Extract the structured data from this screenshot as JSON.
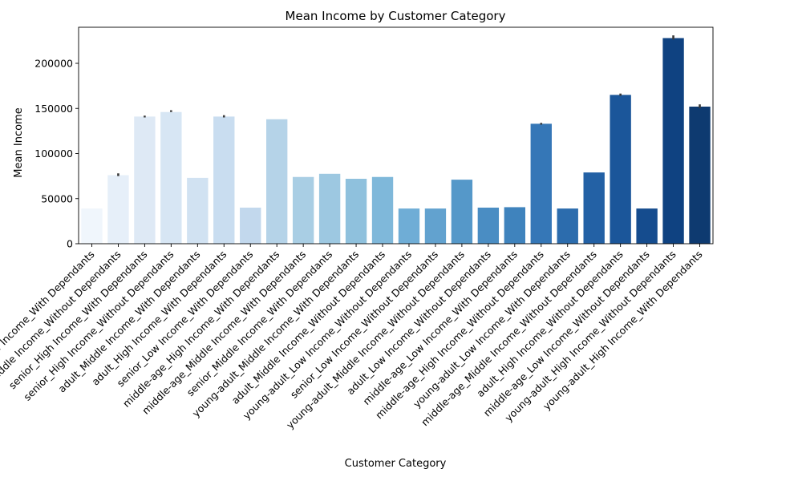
{
  "chart_data": {
    "type": "bar",
    "title": "Mean Income by Customer Category",
    "xlabel": "Customer Category",
    "ylabel": "Mean Income",
    "ylim": [
      0,
      240000
    ],
    "yticks": [
      0,
      50000,
      100000,
      150000,
      200000
    ],
    "ytick_labels": [
      "0",
      "50000",
      "100000",
      "150000",
      "200000"
    ],
    "grid": false,
    "legend": "none",
    "categories": [
      "adult_Low Income_With Dependants",
      "senior_Middle Income_Without Dependants",
      "senior_High Income_With Dependants",
      "senior_High Income_Without Dependants",
      "adult_Middle Income_With Dependants",
      "adult_High Income_With Dependants",
      "senior_Low Income_With Dependants",
      "middle-age_High Income_With Dependants",
      "middle-age_Middle Income_With Dependants",
      "senior_Middle Income_With Dependants",
      "young-adult_Middle Income_With Dependants",
      "adult_Middle Income_Without Dependants",
      "young-adult_Low Income_Without Dependants",
      "senior_Low Income_Without Dependants",
      "young-adult_Middle Income_Without Dependants",
      "adult_Low Income_Without Dependants",
      "middle-age_Low Income_With Dependants",
      "middle-age_High Income_Without Dependants",
      "young-adult_Low Income_With Dependants",
      "middle-age_Middle Income_Without Dependants",
      "adult_High Income_Without Dependants",
      "middle-age_Low Income_Without Dependants",
      "young-adult_High Income_Without Dependants",
      "young-adult_High Income_With Dependants"
    ],
    "values": [
      39000,
      76000,
      141000,
      146000,
      73000,
      141000,
      40000,
      138000,
      74000,
      77500,
      72000,
      74000,
      39000,
      39000,
      71000,
      40000,
      40500,
      133000,
      39000,
      79000,
      165000,
      39000,
      228000,
      152000
    ],
    "error_bars": [
      null,
      [
        75000,
        78000
      ],
      [
        140000,
        142000
      ],
      [
        146000,
        148000
      ],
      null,
      [
        140000,
        142500
      ],
      null,
      null,
      null,
      null,
      null,
      null,
      null,
      null,
      null,
      null,
      null,
      [
        132000,
        134000
      ],
      null,
      null,
      [
        164000,
        166500
      ],
      null,
      [
        226500,
        231000
      ],
      [
        150500,
        154500
      ]
    ],
    "colors": [
      "#f0f6fc",
      "#e6eff9",
      "#dee9f5",
      "#d7e6f4",
      "#d1e2f2",
      "#c9ddf0",
      "#c2d8ed",
      "#b5d3e8",
      "#a9cee4",
      "#9dc8e1",
      "#8fc1dd",
      "#7fb8da",
      "#6fadd6",
      "#62a2cf",
      "#5598c9",
      "#4a8dc3",
      "#3f83bd",
      "#3577b7",
      "#2c6cad",
      "#2361a5",
      "#1b569a",
      "#154c8e",
      "#0f4281",
      "#0e3a70"
    ]
  }
}
